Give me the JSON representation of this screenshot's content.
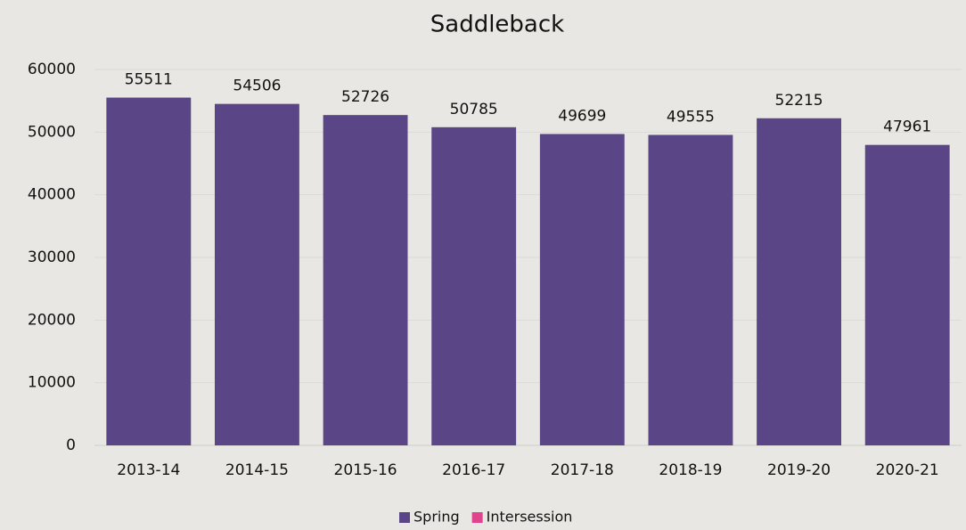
{
  "chart_data": {
    "type": "bar",
    "title": "Saddleback",
    "categories": [
      "2013-14",
      "2014-15",
      "2015-16",
      "2016-17",
      "2017-18",
      "2018-19",
      "2019-20",
      "2020-21"
    ],
    "series": [
      {
        "name": "Spring",
        "color": "#5a4587",
        "values": [
          55511,
          54506,
          52726,
          50785,
          49699,
          49555,
          52215,
          47961
        ]
      },
      {
        "name": "Intersession",
        "color": "#e0448c",
        "values": [
          null,
          null,
          null,
          null,
          null,
          null,
          null,
          null
        ]
      }
    ],
    "ylim": [
      0,
      60000
    ],
    "yticks": [
      0,
      10000,
      20000,
      30000,
      40000,
      50000,
      60000
    ],
    "grid": true,
    "legend": "bottom"
  }
}
